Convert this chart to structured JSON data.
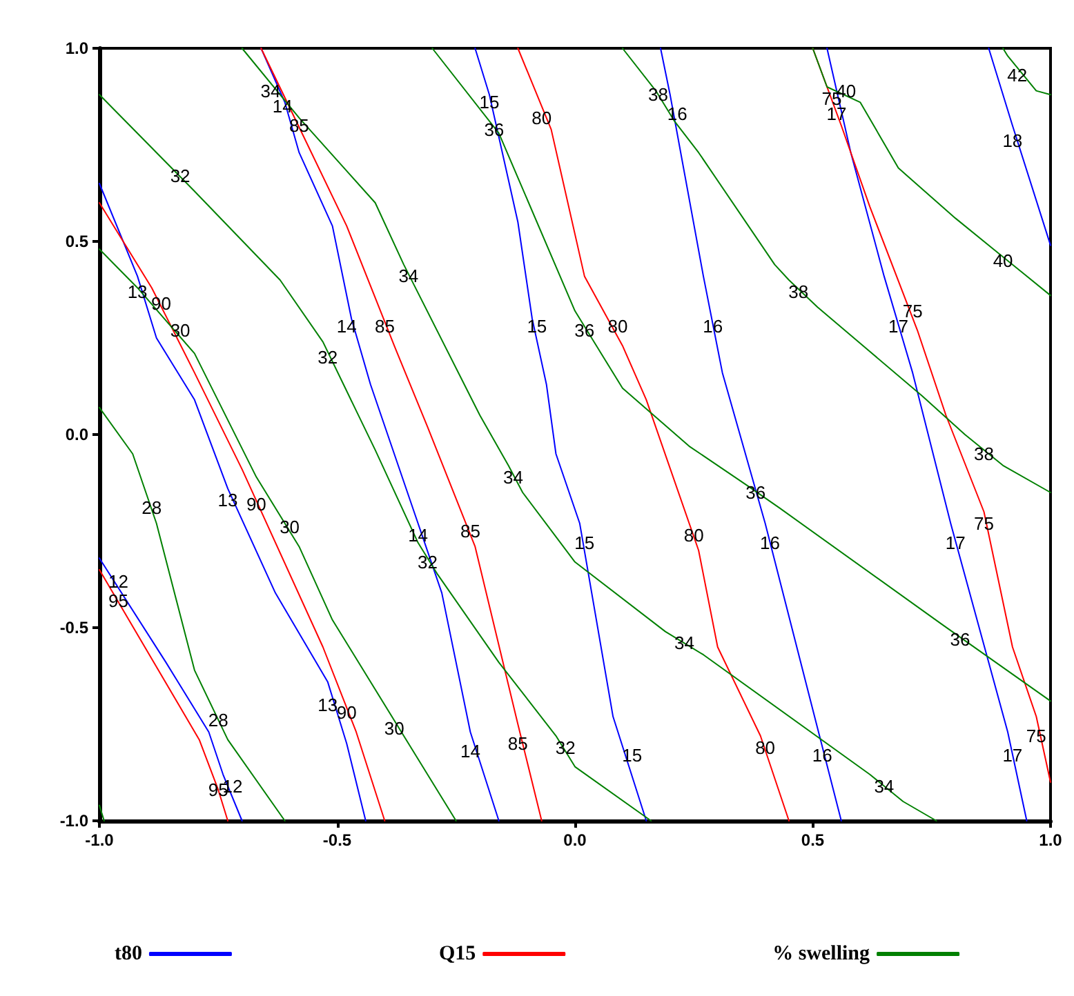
{
  "chart_data": {
    "type": "line",
    "legend": "bottom",
    "grid": false,
    "xlim": [
      -1,
      1
    ],
    "xticks": [
      {
        "value": -1,
        "label": "-1.0"
      },
      {
        "value": -0.5,
        "label": "-0.5"
      },
      {
        "value": 0,
        "label": "0.0"
      },
      {
        "value": 0.5,
        "label": "0.5"
      },
      {
        "value": 1,
        "label": "1.0"
      }
    ],
    "ylim": [
      -1,
      1
    ],
    "yticks": [
      {
        "value": -1,
        "label": "-1.0"
      },
      {
        "value": -0.5,
        "label": "-0.5"
      },
      {
        "value": 0,
        "label": "0.0"
      },
      {
        "value": 0.5,
        "label": "0.5"
      },
      {
        "value": 1,
        "label": "1.0"
      }
    ],
    "series": [
      {
        "name": "t80",
        "color": "#0000ff",
        "x": [
          -1,
          -0.86,
          -0.77,
          -0.74,
          -0.7
        ],
        "values": [
          -0.32,
          -0.59,
          -0.77,
          -0.88,
          -1
        ]
      },
      {
        "color": "#0000ff",
        "x": [
          -1,
          -0.92,
          -0.88,
          -0.8,
          -0.73,
          -0.63,
          -0.52,
          -0.48,
          -0.44
        ],
        "values": [
          0.65,
          0.41,
          0.25,
          0.09,
          -0.14,
          -0.41,
          -0.64,
          -0.8,
          -1
        ]
      },
      {
        "color": "#0000ff",
        "x": [
          -0.66,
          -0.61,
          -0.58,
          -0.51,
          -0.47,
          -0.43,
          -0.33,
          -0.28,
          -0.22,
          -0.16
        ],
        "values": [
          1,
          0.86,
          0.73,
          0.54,
          0.3,
          0.13,
          -0.23,
          -0.41,
          -0.77,
          -1
        ]
      },
      {
        "color": "#0000ff",
        "x": [
          -0.21,
          -0.18,
          -0.12,
          -0.09,
          -0.06,
          -0.04,
          0.01,
          0.08,
          0.15
        ],
        "values": [
          1,
          0.88,
          0.55,
          0.3,
          0.13,
          -0.05,
          -0.23,
          -0.73,
          -1
        ]
      },
      {
        "color": "#0000ff",
        "x": [
          0.18,
          0.2,
          0.27,
          0.31,
          0.4,
          0.51,
          0.56
        ],
        "values": [
          1,
          0.88,
          0.41,
          0.16,
          -0.23,
          -0.76,
          -1
        ]
      },
      {
        "color": "#0000ff",
        "x": [
          0.53,
          0.58,
          0.65,
          0.71,
          0.79,
          0.91,
          0.95
        ],
        "values": [
          1,
          0.73,
          0.41,
          0.16,
          -0.23,
          -0.77,
          -1
        ]
      },
      {
        "color": "#0000ff",
        "x": [
          0.87,
          0.92,
          1.0
        ],
        "values": [
          1,
          0.8,
          0.49
        ]
      },
      {
        "name": "Q15",
        "color": "#ff0000",
        "x": [
          -1,
          -0.79,
          -0.75,
          -0.73
        ],
        "values": [
          -0.35,
          -0.79,
          -0.92,
          -1
        ]
      },
      {
        "color": "#ff0000",
        "x": [
          -1,
          -0.89,
          -0.8,
          -0.7,
          -0.53,
          -0.46,
          -0.4
        ],
        "values": [
          0.6,
          0.38,
          0.16,
          -0.09,
          -0.55,
          -0.77,
          -1
        ]
      },
      {
        "color": "#ff0000",
        "x": [
          -0.66,
          -0.57,
          -0.48,
          -0.38,
          -0.31,
          -0.21,
          -0.12,
          -0.07
        ],
        "values": [
          1,
          0.77,
          0.54,
          0.23,
          0.02,
          -0.29,
          -0.75,
          -1
        ]
      },
      {
        "color": "#ff0000",
        "x": [
          -0.12,
          -0.05,
          0.02,
          0.1,
          0.15,
          0.26,
          0.3,
          0.39,
          0.45
        ],
        "values": [
          1,
          0.79,
          0.41,
          0.23,
          0.09,
          -0.3,
          -0.55,
          -0.78,
          -1
        ]
      },
      {
        "color": "#ff0000",
        "x": [
          0.5,
          0.56,
          0.62,
          0.72,
          0.78,
          0.86,
          0.92,
          0.97,
          1.0
        ],
        "values": [
          1,
          0.8,
          0.59,
          0.27,
          0.05,
          -0.2,
          -0.55,
          -0.73,
          -0.9
        ]
      },
      {
        "name": "% swelling",
        "color": "#008000",
        "x": [
          -1,
          -0.99
        ],
        "values": [
          -0.96,
          -1
        ]
      },
      {
        "color": "#008000",
        "x": [
          -1,
          -0.93,
          -0.88,
          -0.8,
          -0.73,
          -0.61
        ],
        "values": [
          0.07,
          -0.05,
          -0.23,
          -0.61,
          -0.79,
          -1
        ]
      },
      {
        "color": "#008000",
        "x": [
          -1,
          -0.92,
          -0.8,
          -0.67,
          -0.58,
          -0.51,
          -0.35,
          -0.25
        ],
        "values": [
          0.48,
          0.38,
          0.21,
          -0.11,
          -0.29,
          -0.48,
          -0.8,
          -1
        ]
      },
      {
        "color": "#008000",
        "x": [
          -1,
          -0.8,
          -0.62,
          -0.53,
          -0.42,
          -0.33,
          -0.29,
          -0.16,
          -0.04,
          0.0,
          0.16
        ],
        "values": [
          0.88,
          0.63,
          0.4,
          0.24,
          -0.04,
          -0.28,
          -0.36,
          -0.59,
          -0.78,
          -0.86,
          -1
        ]
      },
      {
        "color": "#008000",
        "x": [
          -0.7,
          -0.58,
          -0.42,
          -0.36,
          -0.2,
          -0.14,
          -0.11,
          0.0,
          0.19,
          0.27,
          0.62,
          0.69,
          0.76
        ],
        "values": [
          1,
          0.82,
          0.6,
          0.44,
          0.05,
          -0.08,
          -0.15,
          -0.33,
          -0.51,
          -0.57,
          -0.88,
          -0.95,
          -1
        ]
      },
      {
        "color": "#008000",
        "x": [
          -0.3,
          -0.16,
          0.0,
          0.05,
          0.1,
          0.24,
          0.36,
          0.43,
          0.77,
          1.0
        ],
        "values": [
          1,
          0.78,
          0.32,
          0.22,
          0.12,
          -0.03,
          -0.13,
          -0.19,
          -0.49,
          -0.69
        ]
      },
      {
        "color": "#008000",
        "x": [
          0.1,
          0.17,
          0.21,
          0.26,
          0.42,
          0.45,
          0.51,
          0.73,
          0.82,
          0.9,
          1.0
        ],
        "values": [
          1,
          0.89,
          0.81,
          0.73,
          0.44,
          0.4,
          0.33,
          0.1,
          0.0,
          -0.08,
          -0.15
        ]
      },
      {
        "color": "#008000",
        "x": [
          0.5,
          0.53,
          0.6,
          0.68,
          0.8,
          0.88,
          0.94,
          1.0
        ],
        "values": [
          1,
          0.9,
          0.86,
          0.69,
          0.56,
          0.48,
          0.42,
          0.36
        ]
      },
      {
        "color": "#008000",
        "x": [
          0.9,
          0.91,
          0.97,
          1.0
        ],
        "values": [
          1,
          0.98,
          0.89,
          0.88
        ]
      }
    ],
    "annotations": [
      {
        "text": "12",
        "x": -0.96,
        "y": -0.38
      },
      {
        "text": "95",
        "x": -0.96,
        "y": -0.43
      },
      {
        "text": "12",
        "x": -0.72,
        "y": -0.91
      },
      {
        "text": "95",
        "x": -0.75,
        "y": -0.92
      },
      {
        "text": "13",
        "x": -0.92,
        "y": 0.37
      },
      {
        "text": "13",
        "x": -0.73,
        "y": -0.17
      },
      {
        "text": "13",
        "x": -0.52,
        "y": -0.7
      },
      {
        "text": "14",
        "x": -0.615,
        "y": 0.85
      },
      {
        "text": "14",
        "x": -0.48,
        "y": 0.28
      },
      {
        "text": "14",
        "x": -0.33,
        "y": -0.26
      },
      {
        "text": "14",
        "x": -0.22,
        "y": -0.82
      },
      {
        "text": "15",
        "x": -0.18,
        "y": 0.86
      },
      {
        "text": "15",
        "x": -0.08,
        "y": 0.28
      },
      {
        "text": "15",
        "x": 0.02,
        "y": -0.28
      },
      {
        "text": "15",
        "x": 0.12,
        "y": -0.83
      },
      {
        "text": "16",
        "x": 0.215,
        "y": 0.83
      },
      {
        "text": "16",
        "x": 0.29,
        "y": 0.28
      },
      {
        "text": "16",
        "x": 0.41,
        "y": -0.28
      },
      {
        "text": "16",
        "x": 0.52,
        "y": -0.83
      },
      {
        "text": "17",
        "x": 0.55,
        "y": 0.83
      },
      {
        "text": "17",
        "x": 0.68,
        "y": 0.28
      },
      {
        "text": "17",
        "x": 0.8,
        "y": -0.28
      },
      {
        "text": "17",
        "x": 0.92,
        "y": -0.83
      },
      {
        "text": "18",
        "x": 0.92,
        "y": 0.76
      },
      {
        "text": "90",
        "x": -0.87,
        "y": 0.34
      },
      {
        "text": "90",
        "x": -0.67,
        "y": -0.18
      },
      {
        "text": "90",
        "x": -0.48,
        "y": -0.72
      },
      {
        "text": "85",
        "x": -0.58,
        "y": 0.8
      },
      {
        "text": "85",
        "x": -0.4,
        "y": 0.28
      },
      {
        "text": "85",
        "x": -0.22,
        "y": -0.25
      },
      {
        "text": "85",
        "x": -0.12,
        "y": -0.8
      },
      {
        "text": "80",
        "x": -0.07,
        "y": 0.82
      },
      {
        "text": "80",
        "x": 0.09,
        "y": 0.28
      },
      {
        "text": "80",
        "x": 0.25,
        "y": -0.26
      },
      {
        "text": "80",
        "x": 0.4,
        "y": -0.81
      },
      {
        "text": "75",
        "x": 0.54,
        "y": 0.87
      },
      {
        "text": "75",
        "x": 0.71,
        "y": 0.32
      },
      {
        "text": "75",
        "x": 0.86,
        "y": -0.23
      },
      {
        "text": "75",
        "x": 0.97,
        "y": -0.78
      },
      {
        "text": "28",
        "x": -0.89,
        "y": -0.19
      },
      {
        "text": "28",
        "x": -0.75,
        "y": -0.74
      },
      {
        "text": "30",
        "x": -0.83,
        "y": 0.27
      },
      {
        "text": "30",
        "x": -0.6,
        "y": -0.24
      },
      {
        "text": "30",
        "x": -0.38,
        "y": -0.76
      },
      {
        "text": "32",
        "x": -0.83,
        "y": 0.67
      },
      {
        "text": "32",
        "x": -0.52,
        "y": 0.2
      },
      {
        "text": "32",
        "x": -0.31,
        "y": -0.33
      },
      {
        "text": "32",
        "x": -0.02,
        "y": -0.81
      },
      {
        "text": "34",
        "x": -0.64,
        "y": 0.89
      },
      {
        "text": "34",
        "x": -0.35,
        "y": 0.41
      },
      {
        "text": "34",
        "x": -0.13,
        "y": -0.11
      },
      {
        "text": "34",
        "x": 0.23,
        "y": -0.54
      },
      {
        "text": "34",
        "x": 0.65,
        "y": -0.91
      },
      {
        "text": "36",
        "x": -0.17,
        "y": 0.79
      },
      {
        "text": "36",
        "x": 0.02,
        "y": 0.27
      },
      {
        "text": "36",
        "x": 0.38,
        "y": -0.15
      },
      {
        "text": "36",
        "x": 0.81,
        "y": -0.53
      },
      {
        "text": "38",
        "x": 0.175,
        "y": 0.88
      },
      {
        "text": "38",
        "x": 0.47,
        "y": 0.37
      },
      {
        "text": "38",
        "x": 0.86,
        "y": -0.05
      },
      {
        "text": "40",
        "x": 0.57,
        "y": 0.89
      },
      {
        "text": "40",
        "x": 0.9,
        "y": 0.45
      },
      {
        "text": "42",
        "x": 0.93,
        "y": 0.93
      }
    ]
  }
}
